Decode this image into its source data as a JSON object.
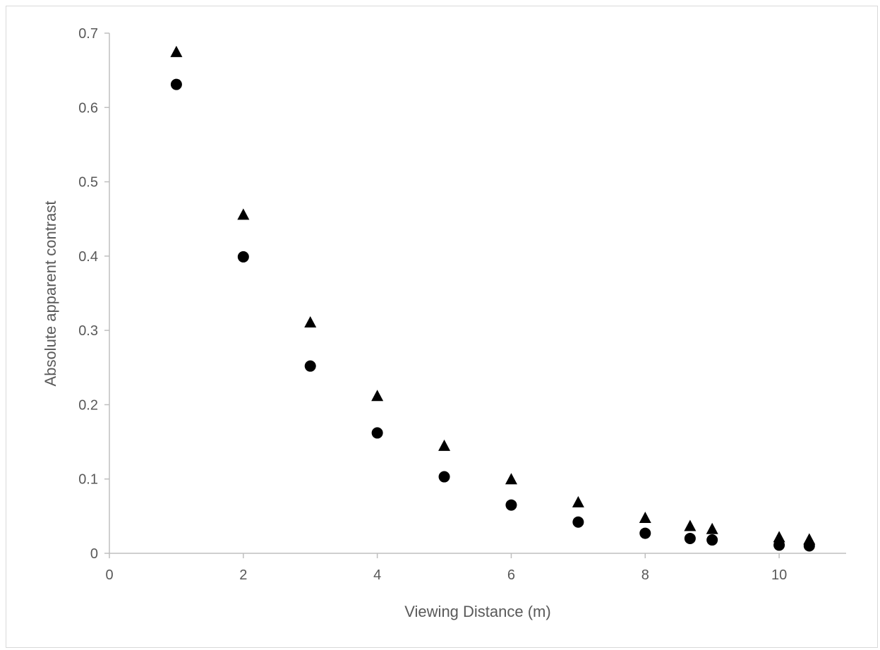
{
  "chart_data": {
    "type": "scatter",
    "xlabel": "Viewing Distance (m)",
    "ylabel": "Absolute apparent contrast",
    "xlim": [
      0,
      11
    ],
    "ylim": [
      0,
      0.7
    ],
    "x_ticks": [
      "0",
      "2",
      "4",
      "6",
      "8",
      "10"
    ],
    "y_ticks": [
      "0",
      "0.1",
      "0.2",
      "0.3",
      "0.4",
      "0.5",
      "0.6",
      "0.7"
    ],
    "grid": false,
    "legend": "none",
    "series": [
      {
        "marker": "triangle",
        "color": "#000000",
        "points": [
          {
            "x": 1,
            "y": 0.675
          },
          {
            "x": 2,
            "y": 0.456
          },
          {
            "x": 3,
            "y": 0.311
          },
          {
            "x": 4,
            "y": 0.212
          },
          {
            "x": 5,
            "y": 0.145
          },
          {
            "x": 6,
            "y": 0.1
          },
          {
            "x": 7,
            "y": 0.069
          },
          {
            "x": 8,
            "y": 0.048
          },
          {
            "x": 8.67,
            "y": 0.037
          },
          {
            "x": 9,
            "y": 0.033
          },
          {
            "x": 10,
            "y": 0.022
          },
          {
            "x": 10.45,
            "y": 0.019
          }
        ]
      },
      {
        "marker": "circle",
        "color": "#000000",
        "points": [
          {
            "x": 1,
            "y": 0.631
          },
          {
            "x": 2,
            "y": 0.399
          },
          {
            "x": 3,
            "y": 0.252
          },
          {
            "x": 4,
            "y": 0.162
          },
          {
            "x": 5,
            "y": 0.103
          },
          {
            "x": 6,
            "y": 0.065
          },
          {
            "x": 7,
            "y": 0.042
          },
          {
            "x": 8,
            "y": 0.027
          },
          {
            "x": 8.67,
            "y": 0.02
          },
          {
            "x": 9,
            "y": 0.018
          },
          {
            "x": 10,
            "y": 0.011
          },
          {
            "x": 10.45,
            "y": 0.01
          }
        ]
      }
    ]
  },
  "colors": {
    "axis": "#bfbfbf",
    "text": "#595959",
    "marker": "#000000"
  }
}
